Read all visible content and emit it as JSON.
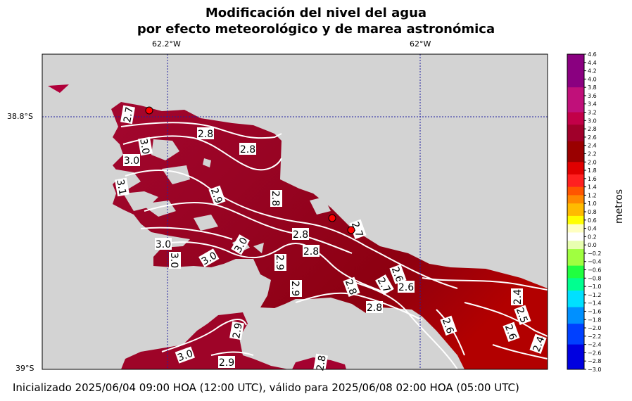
{
  "title_line1": "Modificación del nivel del agua",
  "title_line2": "por efecto meteorológico y de marea astronómica",
  "axes": {
    "top_ticks": [
      "62.2°W",
      "62°W"
    ],
    "left_ticks": [
      "38.8°S",
      "39°S"
    ]
  },
  "colorbar": {
    "title": "metros",
    "ticks": [
      "4.6",
      "4.4",
      "4.2",
      "4.0",
      "3.8",
      "3.6",
      "3.4",
      "3.2",
      "3.0",
      "2.8",
      "2.6",
      "2.4",
      "2.2",
      "2.0",
      "1.8",
      "1.6",
      "1.4",
      "1.2",
      "1.0",
      "0.8",
      "0.6",
      "0.4",
      "0.2",
      "0.0",
      "−0.2",
      "−0.4",
      "−0.6",
      "−0.8",
      "−1.0",
      "−1.2",
      "−1.4",
      "−1.6",
      "−1.8",
      "−2.0",
      "−2.2",
      "−2.4",
      "−2.6",
      "−2.8",
      "−3.0"
    ]
  },
  "contour_labels": [
    "2.7",
    "3.0",
    "3.0",
    "3.1",
    "2.8",
    "2.8",
    "2.9",
    "2.8",
    "2.8",
    "3.0",
    "3.0",
    "3.0",
    "3.0",
    "2.9",
    "2.8",
    "2.9",
    "2.8",
    "2.7",
    "2.6",
    "2.8",
    "2.4",
    "2.5",
    "2.6",
    "2.6",
    "2.4",
    "3.0",
    "2.9",
    "2.9",
    "2.7",
    "2.8",
    "2.6"
  ],
  "footer": "Inicializado 2025/06/04 09:00 HOA (12:00 UTC), válido para 2025/06/08 02:00 HOA (05:00 UTC)",
  "colors": {
    "land": "#d3d3d3",
    "water_high": "#a0062e",
    "water_mid": "#8c0018",
    "water_low": "#b00000",
    "contour": "#ffffff",
    "gridline": "#2020a0",
    "station": "#ff0000"
  }
}
